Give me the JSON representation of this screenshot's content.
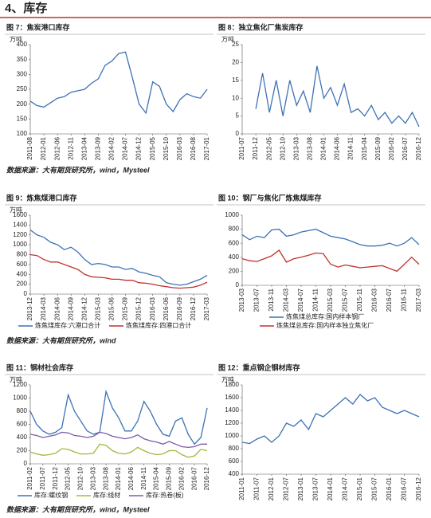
{
  "heading": "4、库存",
  "notes": [
    "数据来源：大有期货研究所，wind，Mysteel",
    "数据来源：大有期货研究所，wind",
    "数据来源：大有期货研究所，wind，Mysteel"
  ],
  "chart_data": [
    {
      "type": "line",
      "title": "图 7：焦炭港口库存",
      "y_unit": "万吨",
      "color": "#3d72b4",
      "categories": [
        "2011-08",
        null,
        "2012-01",
        null,
        "2012-06",
        null,
        "2012-11",
        null,
        "2013-04",
        null,
        "2013-09",
        null,
        "2014-02",
        null,
        "2014-07",
        null,
        "2014-12",
        null,
        "2015-05",
        null,
        "2015-10",
        null,
        "2016-03",
        null,
        "2016-08",
        null,
        "2017-01"
      ],
      "values": [
        210,
        195,
        190,
        205,
        220,
        225,
        240,
        245,
        250,
        270,
        285,
        330,
        345,
        370,
        375,
        290,
        200,
        170,
        275,
        260,
        200,
        175,
        215,
        235,
        225,
        220,
        250
      ],
      "ylim": [
        100,
        400
      ],
      "yticks": [
        100,
        150,
        200,
        250,
        300,
        350,
        400
      ],
      "grid": false
    },
    {
      "type": "line",
      "title": "图 8：独立焦化厂焦炭库存",
      "y_unit": "万吨",
      "color": "#3d72b4",
      "categories": [
        "2011-07",
        null,
        "2011-12",
        null,
        "2012-05",
        null,
        "2012-10",
        null,
        "2013-03",
        null,
        "2013-08",
        null,
        "2014-01",
        null,
        "2014-06",
        null,
        "2014-11",
        null,
        "2015-04",
        null,
        "2015-09",
        null,
        "2016-02",
        null,
        "2016-07",
        null,
        "2016-12"
      ],
      "values": [
        null,
        null,
        7,
        17,
        6,
        15,
        5,
        15,
        8,
        12,
        6,
        19,
        10,
        13,
        8,
        14,
        6,
        7,
        5,
        8,
        4,
        6,
        3,
        5,
        3,
        6,
        2
      ],
      "ylim": [
        0,
        25
      ],
      "yticks": [
        0,
        5,
        10,
        15,
        20,
        25
      ],
      "grid": false
    },
    {
      "type": "line",
      "title": "图 9：炼焦煤港口库存",
      "y_unit": "万吨",
      "categories": [
        "2013-12",
        null,
        "2014-03",
        null,
        "2014-06",
        null,
        "2014-09",
        null,
        "2014-12",
        null,
        "2015-03",
        null,
        "2015-06",
        null,
        "2015-09",
        null,
        "2015-12",
        null,
        "2016-03",
        null,
        "2016-06",
        null,
        "2016-09",
        null,
        "2016-12",
        null,
        "2017-03"
      ],
      "series": [
        {
          "name": "炼焦煤库存:六港口合计",
          "color": "#3d72b4",
          "values": [
            1300,
            1200,
            1150,
            1050,
            1000,
            900,
            950,
            850,
            700,
            600,
            620,
            600,
            550,
            550,
            500,
            520,
            450,
            420,
            380,
            350,
            230,
            200,
            180,
            200,
            250,
            300,
            380
          ]
        },
        {
          "name": "炼焦煤库存:四港口合计",
          "color": "#c0322d",
          "values": [
            800,
            780,
            700,
            650,
            650,
            600,
            550,
            500,
            400,
            350,
            340,
            330,
            300,
            300,
            280,
            280,
            230,
            220,
            200,
            170,
            150,
            130,
            120,
            130,
            140,
            180,
            240
          ]
        }
      ],
      "ylim": [
        0,
        1600
      ],
      "yticks": [
        0,
        200,
        400,
        600,
        800,
        1000,
        1200,
        1400,
        1600
      ],
      "grid": false
    },
    {
      "type": "line",
      "title": "图 10：钢厂与焦化厂炼焦煤库存",
      "categories": [
        "2013-03",
        null,
        "2013-07",
        null,
        "2013-11",
        null,
        "2014-03",
        null,
        "2014-07",
        null,
        "2014-11",
        null,
        "2015-03",
        null,
        "2015-07",
        null,
        "2015-11",
        null,
        "2016-03",
        null,
        "2016-07",
        null,
        "2016-11",
        null,
        "2017-03"
      ],
      "series": [
        {
          "name": "炼焦煤总库存:国内样本钢厂",
          "color": "#3d72b4",
          "values": [
            720,
            650,
            700,
            680,
            790,
            800,
            700,
            720,
            760,
            780,
            800,
            750,
            700,
            680,
            660,
            620,
            580,
            560,
            560,
            570,
            600,
            560,
            600,
            680,
            580
          ]
        },
        {
          "name": "炼焦煤总库存:国内样本独立焦化厂",
          "color": "#c0322d",
          "values": [
            380,
            350,
            340,
            380,
            420,
            500,
            330,
            380,
            400,
            430,
            460,
            450,
            300,
            260,
            290,
            270,
            250,
            260,
            270,
            280,
            240,
            200,
            300,
            400,
            300
          ]
        }
      ],
      "ylim": [
        0,
        1000
      ],
      "yticks": [
        0,
        200,
        400,
        600,
        800,
        1000
      ],
      "grid": false
    },
    {
      "type": "line",
      "title": "图 11：钢材社会库存",
      "y_unit": "万吨",
      "categories": [
        "2011-02",
        null,
        "2011-07",
        null,
        "2011-12",
        null,
        "2012-05",
        null,
        "2012-10",
        null,
        "2013-03",
        null,
        "2013-08",
        null,
        "2014-01",
        null,
        "2014-06",
        null,
        "2014-11",
        null,
        "2015-04",
        null,
        "2015-09",
        null,
        "2016-02",
        null,
        "2016-07",
        null,
        "2016-12"
      ],
      "series": [
        {
          "name": "库存:螺纹钢",
          "color": "#3d72b4",
          "values": [
            800,
            600,
            500,
            450,
            480,
            550,
            1050,
            800,
            650,
            500,
            450,
            480,
            1100,
            850,
            700,
            500,
            500,
            650,
            950,
            800,
            600,
            450,
            420,
            650,
            700,
            450,
            300,
            400,
            850
          ]
        },
        {
          "name": "库存:线材",
          "color": "#9bbb3c",
          "values": [
            180,
            150,
            130,
            140,
            160,
            230,
            220,
            180,
            150,
            150,
            160,
            300,
            280,
            200,
            160,
            150,
            180,
            250,
            200,
            160,
            140,
            150,
            200,
            200,
            140,
            100,
            120,
            220,
            200
          ]
        },
        {
          "name": "库存:热卷(板)",
          "color": "#7b5ba6",
          "values": [
            450,
            430,
            400,
            420,
            440,
            480,
            470,
            430,
            420,
            400,
            420,
            480,
            460,
            420,
            400,
            380,
            400,
            440,
            380,
            350,
            330,
            300,
            340,
            300,
            260,
            250,
            260,
            300,
            300
          ]
        }
      ],
      "ylim": [
        0,
        1200
      ],
      "yticks": [
        0,
        200,
        400,
        600,
        800,
        1000,
        1200
      ],
      "grid": false
    },
    {
      "type": "line",
      "title": "图 12：重点钢企钢材库存",
      "y_unit": "万吨",
      "color": "#3d72b4",
      "categories": [
        "2011-01",
        null,
        "2011-07",
        null,
        "2012-01",
        null,
        "2012-07",
        null,
        "2013-01",
        null,
        "2013-07",
        null,
        "2014-01",
        null,
        "2014-07",
        null,
        "2015-01",
        null,
        "2015-07",
        null,
        "2016-01",
        null,
        "2016-07",
        null,
        "2016-12"
      ],
      "values": [
        900,
        880,
        950,
        1000,
        900,
        1000,
        1200,
        1150,
        1250,
        1100,
        1350,
        1300,
        1400,
        1500,
        1600,
        1500,
        1650,
        1550,
        1600,
        1450,
        1400,
        1350,
        1400,
        1350,
        1300
      ],
      "ylim": [
        400,
        1800
      ],
      "yticks": [
        400,
        600,
        800,
        1000,
        1200,
        1400,
        1600,
        1800
      ],
      "grid": false
    }
  ]
}
